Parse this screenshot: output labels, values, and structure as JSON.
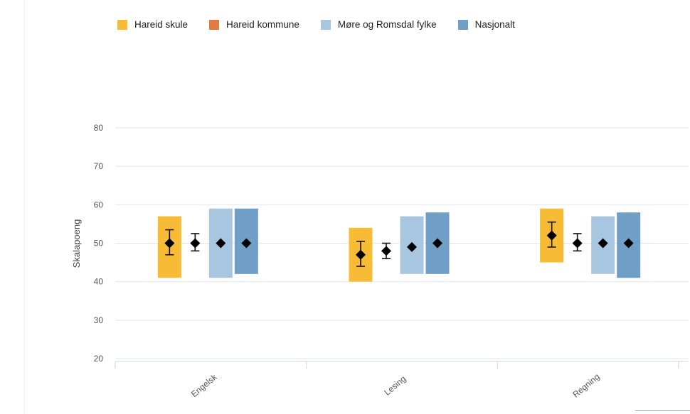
{
  "legend": {
    "items": [
      {
        "label": "Hareid skule",
        "color": "#f7bb36"
      },
      {
        "label": "Hareid kommune",
        "color": "#e27a45"
      },
      {
        "label": "Møre og Romsdal fylke",
        "color": "#a9c6e0"
      },
      {
        "label": "Nasjonalt",
        "color": "#6f9fc6"
      }
    ]
  },
  "chart_data": {
    "type": "bar",
    "ylabel": "Skalapoeng",
    "xlabel": "",
    "ylim": [
      20,
      80
    ],
    "yticks": [
      20,
      30,
      40,
      50,
      60,
      70,
      80
    ],
    "grid": true,
    "legend_position": "top",
    "categories": [
      "Engelsk",
      "Lesing",
      "Regning"
    ],
    "series": [
      {
        "name": "Hareid skule",
        "color": "#f7bb36",
        "range_low": [
          41,
          40,
          45
        ],
        "range_high": [
          57,
          54,
          59
        ],
        "mean": [
          50,
          47,
          52
        ],
        "ci_low": [
          47,
          44,
          49
        ],
        "ci_high": [
          53.5,
          50.5,
          55.5
        ]
      },
      {
        "name": "Hareid kommune",
        "color": "#e27a45",
        "range_low": [
          null,
          null,
          null
        ],
        "range_high": [
          null,
          null,
          null
        ],
        "mean": [
          50,
          48,
          50
        ],
        "ci_low": [
          48,
          46,
          48
        ],
        "ci_high": [
          52.5,
          50,
          52.5
        ]
      },
      {
        "name": "Møre og Romsdal fylke",
        "color": "#a9c6e0",
        "range_low": [
          41,
          42,
          42
        ],
        "range_high": [
          59,
          57,
          57
        ],
        "mean": [
          50,
          49,
          50
        ],
        "ci_low": [
          null,
          null,
          null
        ],
        "ci_high": [
          null,
          null,
          null
        ]
      },
      {
        "name": "Nasjonalt",
        "color": "#6f9fc6",
        "range_low": [
          42,
          42,
          41
        ],
        "range_high": [
          59,
          58,
          58
        ],
        "mean": [
          50,
          50,
          50
        ],
        "ci_low": [
          null,
          null,
          null
        ],
        "ci_high": [
          null,
          null,
          null
        ]
      }
    ]
  }
}
